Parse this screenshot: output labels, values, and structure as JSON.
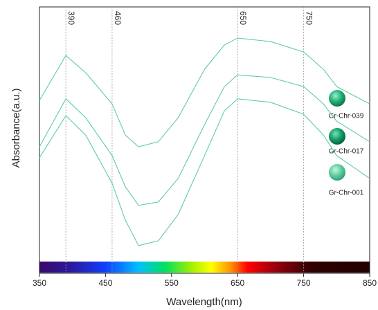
{
  "chart_data": {
    "type": "line",
    "xlabel": "Wavelength(nm)",
    "ylabel": "Absorbance(a.u.)",
    "x": [
      350,
      390,
      420,
      460,
      480,
      500,
      530,
      560,
      600,
      630,
      650,
      700,
      750,
      780,
      800,
      850
    ],
    "series": [
      {
        "name": "Gr-Chr-039",
        "color": "#5ccca6",
        "values": [
          64.9,
          81.8,
          75.3,
          63.6,
          51.9,
          47.5,
          49.4,
          58.4,
          76.6,
          85.7,
          88.3,
          87.0,
          83.1,
          76.6,
          70.1,
          63.6
        ]
      },
      {
        "name": "Gr-Chr-017",
        "color": "#5ccca6",
        "values": [
          47.5,
          65.5,
          58.4,
          44.2,
          32.5,
          25.5,
          26.8,
          35.6,
          55.8,
          70.1,
          74.5,
          73.5,
          70.1,
          63.6,
          57.1,
          49.4
        ]
      },
      {
        "name": "Gr-Chr-001",
        "color": "#5ccca6",
        "values": [
          43.4,
          59.2,
          51.9,
          33.8,
          20.0,
          10.4,
          12.2,
          22.1,
          44.2,
          61.0,
          65.5,
          64.2,
          59.7,
          51.9,
          44.2,
          35.6
        ]
      }
    ],
    "reference_lines": [
      390,
      460,
      650,
      750
    ],
    "xlim": [
      350,
      850
    ],
    "xticks": [
      350,
      450,
      550,
      650,
      750,
      850
    ],
    "ylim": [
      0,
      100
    ]
  }
}
